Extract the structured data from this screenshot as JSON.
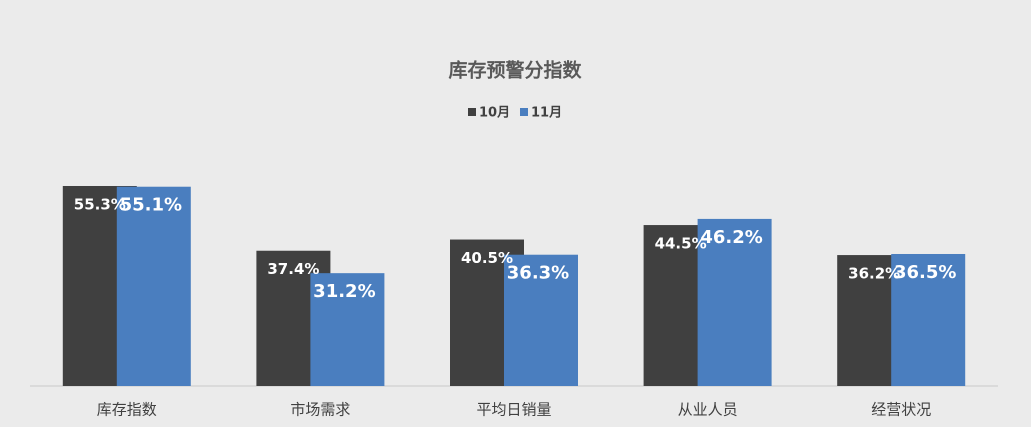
{
  "chart_data": {
    "type": "bar",
    "title": "库存预警分指数",
    "categories": [
      "库存指数",
      "市场需求",
      "平均日销量",
      "从业人员",
      "经营状况"
    ],
    "series": [
      {
        "name": "10月",
        "color": "#404040",
        "values": [
          55.3,
          37.4,
          40.5,
          44.5,
          36.2
        ],
        "value_labels": [
          "55.3%",
          "37.4%",
          "40.5%",
          "44.5%",
          "36.2%"
        ]
      },
      {
        "name": "11月",
        "color": "#4a7ebf",
        "values": [
          55.1,
          31.2,
          36.3,
          46.2,
          36.5
        ],
        "value_labels": [
          "55.1%",
          "31.2%",
          "36.3%",
          "46.2%",
          "36.5%"
        ]
      }
    ],
    "ylim": [
      0,
      60
    ],
    "legend": "top"
  }
}
